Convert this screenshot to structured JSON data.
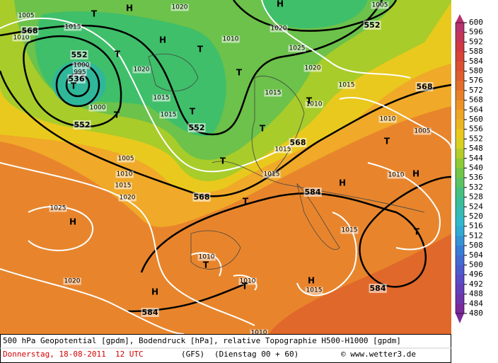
{
  "map": {
    "isobar_labels": [
      1005,
      1010,
      1015,
      1020,
      1020,
      1025,
      1020,
      1010,
      1000,
      995,
      1020,
      1015,
      1015,
      1000,
      1015,
      1010,
      1015,
      1005,
      1010,
      1005,
      1015,
      1015,
      1005,
      1010,
      1015,
      1020,
      1025,
      1010,
      1015,
      1010,
      1010,
      1015,
      1020,
      1010
    ],
    "height_labels": [
      568,
      552,
      536,
      552,
      552,
      568,
      552,
      568,
      568,
      584,
      584,
      584
    ],
    "pressure_centers": [
      "T",
      "H",
      "T",
      "H",
      "T",
      "T",
      "T",
      "T",
      "T",
      "T",
      "T",
      "T",
      "T",
      "H",
      "H",
      "H",
      "T",
      "T",
      "T",
      "T",
      "H",
      "H",
      "H"
    ]
  },
  "colorbar": {
    "labels": [
      600,
      596,
      592,
      588,
      584,
      580,
      576,
      572,
      568,
      564,
      560,
      556,
      552,
      548,
      544,
      540,
      536,
      532,
      528,
      524,
      520,
      516,
      512,
      508,
      504,
      500,
      496,
      492,
      488,
      484,
      480
    ]
  },
  "footer": {
    "caption": "500 hPa Geopotential [gpdm], Bodendruck [hPa], relative Topographie H500-H1000 [gpdm]",
    "date": "Donnerstag, 18-08-2011  12 UTC",
    "model": "(GFS)",
    "run": "(Dienstag 00 + 60)",
    "copyright": "© www.wetter3.de"
  }
}
